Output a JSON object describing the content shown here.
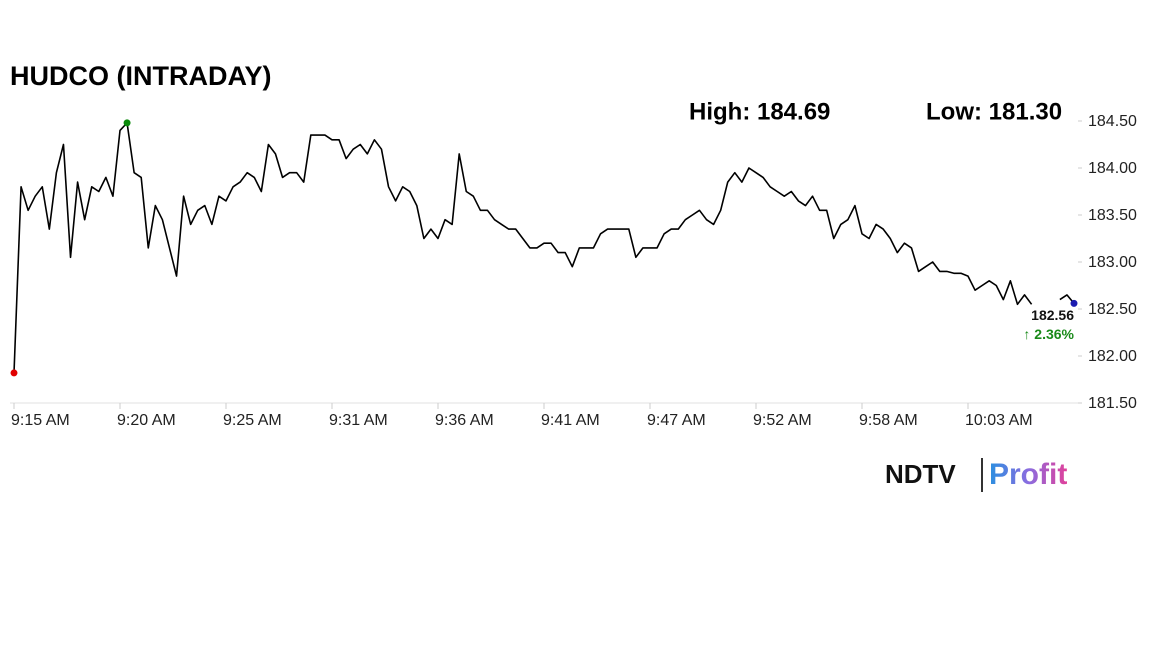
{
  "chart_data": {
    "type": "line",
    "title": "HUDCO (INTRADAY)",
    "annotations": {
      "high": "High: 184.69",
      "low": "Low: 181.30",
      "change": "↑ 2.36%"
    },
    "x": [
      0,
      1,
      2,
      3,
      4,
      5,
      6,
      7,
      8,
      9,
      10,
      11,
      12,
      13,
      14,
      15,
      16,
      17,
      18,
      19,
      20,
      21,
      22,
      23,
      24,
      25,
      26,
      27,
      28,
      29,
      30,
      31,
      32,
      33,
      34,
      35,
      36,
      37,
      38,
      39,
      40,
      41,
      42,
      43,
      44,
      45,
      46,
      47,
      48,
      49,
      50,
      51,
      52,
      53,
      54,
      55,
      56,
      57,
      58,
      59,
      60,
      61,
      62,
      63,
      64,
      65,
      66,
      67,
      68,
      69,
      70,
      71,
      72,
      73,
      74,
      75,
      76,
      77,
      78,
      79,
      80,
      81,
      82,
      83,
      84,
      85,
      86,
      87,
      88,
      89,
      90,
      91,
      92,
      93,
      94,
      95,
      96,
      97,
      98,
      99,
      100,
      101,
      102,
      103,
      104,
      105,
      106,
      107,
      108,
      109,
      110,
      111,
      112,
      113,
      114,
      115,
      116,
      117,
      118,
      119,
      120,
      121,
      122,
      123,
      124,
      125,
      126,
      127,
      128,
      129,
      130,
      131,
      132,
      133,
      134,
      135,
      136,
      137,
      138,
      139,
      140,
      141,
      142,
      143,
      144,
      145,
      146,
      147,
      148,
      149,
      150
    ],
    "series": [
      {
        "color": "#000000",
        "values": [
          181.82,
          183.8,
          183.55,
          183.7,
          183.8,
          183.35,
          183.95,
          184.25,
          183.05,
          183.85,
          183.45,
          183.8,
          183.75,
          183.9,
          183.7,
          184.4,
          184.48,
          183.95,
          183.9,
          183.15,
          183.6,
          183.45,
          183.15,
          182.85,
          183.7,
          183.4,
          183.55,
          183.6,
          183.4,
          183.7,
          183.65,
          183.8,
          183.85,
          183.95,
          183.9,
          183.75,
          184.25,
          184.15,
          183.9,
          183.95,
          183.95,
          183.85,
          184.35,
          184.35,
          184.35,
          184.3,
          184.3,
          184.1,
          184.2,
          184.25,
          184.15,
          184.3,
          184.2,
          183.8,
          183.65,
          183.8,
          183.75,
          183.6,
          183.25,
          183.35,
          183.25,
          183.45,
          183.4,
          184.15,
          183.75,
          183.7,
          183.55,
          183.55,
          183.45,
          183.4,
          183.35,
          183.35,
          183.25,
          183.15,
          183.15,
          183.2,
          183.2,
          183.1,
          183.1,
          182.95,
          183.15,
          183.15,
          183.15,
          183.3,
          183.35,
          183.35,
          183.35,
          183.35,
          183.05,
          183.15,
          183.15,
          183.15,
          183.3,
          183.35,
          183.35,
          183.45,
          183.5,
          183.55,
          183.45,
          183.4,
          183.55,
          183.85,
          183.95,
          183.85,
          184.0,
          183.95,
          183.9,
          183.8,
          183.75,
          183.7,
          183.75,
          183.65,
          183.6,
          183.7,
          183.55,
          183.55,
          183.25,
          183.4,
          183.45,
          183.6,
          183.3,
          183.25,
          183.4,
          183.35,
          183.25,
          183.1,
          183.2,
          183.15,
          182.9,
          182.95,
          183.0,
          182.9,
          182.9,
          182.88,
          182.88,
          182.85,
          182.7,
          182.75,
          182.8,
          182.75,
          182.6,
          182.8,
          182.55,
          182.65,
          182.55,
          null,
          null,
          null,
          182.6,
          182.65,
          182.56
        ]
      }
    ],
    "point_colors": {
      "first": "#e00000",
      "max": "#0a8a0a",
      "last": "#1c1cb0"
    },
    "change_color": "#1a8a1a",
    "xlim": [
      0,
      150
    ],
    "xticks": [
      {
        "value": 0,
        "label": "9:15 AM"
      },
      {
        "value": 15,
        "label": "9:20 AM"
      },
      {
        "value": 30,
        "label": "9:25 AM"
      },
      {
        "value": 45,
        "label": "9:31 AM"
      },
      {
        "value": 60,
        "label": "9:36 AM"
      },
      {
        "value": 75,
        "label": "9:41 AM"
      },
      {
        "value": 90,
        "label": "9:47 AM"
      },
      {
        "value": 105,
        "label": "9:52 AM"
      },
      {
        "value": 120,
        "label": "9:58 AM"
      },
      {
        "value": 135,
        "label": "10:03 AM"
      }
    ],
    "ylim": [
      181.5,
      184.5
    ],
    "yticks": [
      {
        "value": 181.5,
        "label": "181.50"
      },
      {
        "value": 182,
        "label": "182.00"
      },
      {
        "value": 182.5,
        "label": "182.50"
      },
      {
        "value": 183,
        "label": "183.00"
      },
      {
        "value": 183.5,
        "label": "183.50"
      },
      {
        "value": 184,
        "label": "184.00"
      },
      {
        "value": 184.5,
        "label": "184.50"
      }
    ]
  },
  "logo": {
    "left": "NDTV",
    "right": "Profit"
  }
}
